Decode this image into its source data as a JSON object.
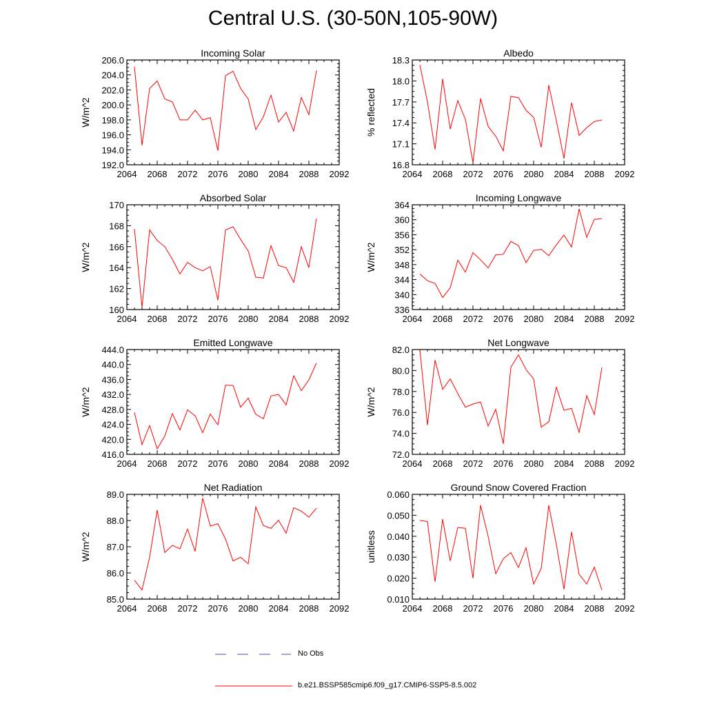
{
  "title": "Central U.S. (30-50N,105-90W)",
  "colors": {
    "model": "#ff0000",
    "obs": "#4a4ab8",
    "axes": "#000000"
  },
  "legend": {
    "obs_label": "No Obs",
    "model_label": "b.e21.BSSP585cmip6.f09_g17.CMIP6-SSP5-8.5.002"
  },
  "chart_data": [
    {
      "type": "line",
      "title": "Incoming Solar",
      "xlabel": "",
      "ylabel": "W/m^2",
      "xlim": [
        2064,
        2092
      ],
      "ylim": [
        192,
        206
      ],
      "xticks": [
        "2064",
        "2068",
        "2072",
        "2076",
        "2080",
        "2084",
        "2088",
        "2092"
      ],
      "yticks": [
        "192.0",
        "194.0",
        "196.0",
        "198.0",
        "200.0",
        "202.0",
        "204.0",
        "206.0"
      ],
      "x": [
        2065,
        2066,
        2067,
        2068,
        2069,
        2070,
        2071,
        2072,
        2073,
        2074,
        2075,
        2076,
        2077,
        2078,
        2079,
        2080,
        2081,
        2082,
        2083,
        2084,
        2085,
        2086,
        2087,
        2088,
        2089
      ],
      "values": [
        205.1,
        194.6,
        202.2,
        203.2,
        200.8,
        200.4,
        198.0,
        198.0,
        199.3,
        198.0,
        198.3,
        193.9,
        203.9,
        204.5,
        202.2,
        200.8,
        196.7,
        198.4,
        201.3,
        197.7,
        199.0,
        196.5,
        201.0,
        198.7,
        204.6
      ]
    },
    {
      "type": "line",
      "title": "Albedo",
      "xlabel": "",
      "ylabel": "% reflected",
      "xlim": [
        2064,
        2092
      ],
      "ylim": [
        16.8,
        18.3
      ],
      "xticks": [
        "2064",
        "2068",
        "2072",
        "2076",
        "2080",
        "2084",
        "2088",
        "2092"
      ],
      "yticks": [
        "16.8",
        "17.1",
        "17.4",
        "17.7",
        "18.0",
        "18.3"
      ],
      "x": [
        2065,
        2066,
        2067,
        2068,
        2069,
        2070,
        2071,
        2072,
        2073,
        2074,
        2075,
        2076,
        2077,
        2078,
        2079,
        2080,
        2081,
        2082,
        2083,
        2084,
        2085,
        2086,
        2087,
        2088,
        2089
      ],
      "values": [
        18.23,
        17.7,
        17.02,
        18.03,
        17.31,
        17.72,
        17.45,
        16.83,
        17.75,
        17.35,
        17.21,
        17.0,
        17.78,
        17.76,
        17.58,
        17.48,
        17.05,
        17.94,
        17.43,
        16.89,
        17.69,
        17.22,
        17.33,
        17.42,
        17.44
      ]
    },
    {
      "type": "line",
      "title": "Absorbed Solar",
      "xlabel": "",
      "ylabel": "W/m^2",
      "xlim": [
        2064,
        2092
      ],
      "ylim": [
        160,
        170
      ],
      "xticks": [
        "2064",
        "2068",
        "2072",
        "2076",
        "2080",
        "2084",
        "2088",
        "2092"
      ],
      "yticks": [
        "160",
        "162",
        "164",
        "166",
        "168",
        "170"
      ],
      "x": [
        2065,
        2066,
        2067,
        2068,
        2069,
        2070,
        2071,
        2072,
        2073,
        2074,
        2075,
        2076,
        2077,
        2078,
        2079,
        2080,
        2081,
        2082,
        2083,
        2084,
        2085,
        2086,
        2087,
        2088,
        2089
      ],
      "values": [
        167.7,
        160.2,
        167.6,
        166.6,
        166.0,
        164.8,
        163.4,
        164.5,
        164.0,
        163.7,
        164.1,
        160.9,
        167.6,
        167.9,
        166.7,
        165.6,
        163.1,
        163.0,
        166.1,
        164.2,
        164.0,
        162.6,
        166.0,
        164.0,
        168.7
      ]
    },
    {
      "type": "line",
      "title": "Incoming Longwave",
      "xlabel": "",
      "ylabel": "W/m^2",
      "xlim": [
        2064,
        2092
      ],
      "ylim": [
        336,
        364
      ],
      "xticks": [
        "2064",
        "2068",
        "2072",
        "2076",
        "2080",
        "2084",
        "2088",
        "2092"
      ],
      "yticks": [
        "336",
        "340",
        "344",
        "348",
        "352",
        "356",
        "360",
        "364"
      ],
      "x": [
        2065,
        2066,
        2067,
        2068,
        2069,
        2070,
        2071,
        2072,
        2073,
        2074,
        2075,
        2076,
        2077,
        2078,
        2079,
        2080,
        2081,
        2082,
        2083,
        2084,
        2085,
        2086,
        2087,
        2088,
        2089
      ],
      "values": [
        345.5,
        343.7,
        343.0,
        339.2,
        341.8,
        349.2,
        346.0,
        351.2,
        349.3,
        347.1,
        350.6,
        350.8,
        354.2,
        353.1,
        348.5,
        351.8,
        352.1,
        350.4,
        353.3,
        355.9,
        352.7,
        362.9,
        355.3,
        360.1,
        360.3
      ]
    },
    {
      "type": "line",
      "title": "Emitted Longwave",
      "xlabel": "",
      "ylabel": "W/m^2",
      "xlim": [
        2064,
        2092
      ],
      "ylim": [
        416,
        444
      ],
      "xticks": [
        "2064",
        "2068",
        "2072",
        "2076",
        "2080",
        "2084",
        "2088",
        "2092"
      ],
      "yticks": [
        "416.0",
        "420.0",
        "424.0",
        "428.0",
        "432.0",
        "436.0",
        "440.0",
        "444.0"
      ],
      "x": [
        2065,
        2066,
        2067,
        2068,
        2069,
        2070,
        2071,
        2072,
        2073,
        2074,
        2075,
        2076,
        2077,
        2078,
        2079,
        2080,
        2081,
        2082,
        2083,
        2084,
        2085,
        2086,
        2087,
        2088,
        2089
      ],
      "values": [
        427.2,
        418.6,
        423.7,
        417.5,
        420.9,
        426.9,
        422.5,
        427.9,
        426.3,
        421.8,
        426.8,
        423.9,
        434.5,
        434.4,
        428.6,
        431.0,
        426.7,
        425.5,
        431.6,
        432.0,
        429.2,
        437.0,
        433.0,
        435.9,
        440.4
      ]
    },
    {
      "type": "line",
      "title": "Net Longwave",
      "xlabel": "",
      "ylabel": "W/m^2",
      "xlim": [
        2064,
        2092
      ],
      "ylim": [
        72,
        82
      ],
      "xticks": [
        "2064",
        "2068",
        "2072",
        "2076",
        "2080",
        "2084",
        "2088",
        "2092"
      ],
      "yticks": [
        "72.0",
        "74.0",
        "76.0",
        "78.0",
        "80.0",
        "82.0"
      ],
      "x": [
        2065,
        2066,
        2067,
        2068,
        2069,
        2070,
        2071,
        2072,
        2073,
        2074,
        2075,
        2076,
        2077,
        2078,
        2079,
        2080,
        2081,
        2082,
        2083,
        2084,
        2085,
        2086,
        2087,
        2088,
        2089
      ],
      "values": [
        82.0,
        74.8,
        81.0,
        78.2,
        79.2,
        77.8,
        76.5,
        76.8,
        77.0,
        74.7,
        76.3,
        73.0,
        80.3,
        81.5,
        80.1,
        79.2,
        74.6,
        75.1,
        78.4,
        76.2,
        76.4,
        74.1,
        77.6,
        75.8,
        80.3
      ]
    },
    {
      "type": "line",
      "title": "Net Radiation",
      "xlabel": "",
      "ylabel": "W/m^2",
      "xlim": [
        2064,
        2092
      ],
      "ylim": [
        85,
        89
      ],
      "xticks": [
        "2064",
        "2068",
        "2072",
        "2076",
        "2080",
        "2084",
        "2088",
        "2092"
      ],
      "yticks": [
        "85.0",
        "86.0",
        "87.0",
        "88.0",
        "89.0"
      ],
      "x": [
        2065,
        2066,
        2067,
        2068,
        2069,
        2070,
        2071,
        2072,
        2073,
        2074,
        2075,
        2076,
        2077,
        2078,
        2079,
        2080,
        2081,
        2082,
        2083,
        2084,
        2085,
        2086,
        2087,
        2088,
        2089
      ],
      "values": [
        85.72,
        85.35,
        86.6,
        88.4,
        86.78,
        87.05,
        86.92,
        87.67,
        86.82,
        88.86,
        87.79,
        87.88,
        87.3,
        86.46,
        86.6,
        86.35,
        88.52,
        87.81,
        87.7,
        88.01,
        87.52,
        88.49,
        88.36,
        88.13,
        88.47
      ]
    },
    {
      "type": "line",
      "title": "Ground Snow Covered Fraction",
      "xlabel": "",
      "ylabel": "unitless",
      "xlim": [
        2064,
        2092
      ],
      "ylim": [
        0.01,
        0.06
      ],
      "xticks": [
        "2064",
        "2068",
        "2072",
        "2076",
        "2080",
        "2084",
        "2088",
        "2092"
      ],
      "yticks": [
        "0.010",
        "0.020",
        "0.030",
        "0.040",
        "0.050",
        "0.060"
      ],
      "x": [
        2065,
        2066,
        2067,
        2068,
        2069,
        2070,
        2071,
        2072,
        2073,
        2074,
        2075,
        2076,
        2077,
        2078,
        2079,
        2080,
        2081,
        2082,
        2083,
        2084,
        2085,
        2086,
        2087,
        2088,
        2089
      ],
      "values": [
        0.0476,
        0.047,
        0.0183,
        0.0482,
        0.0282,
        0.0442,
        0.0438,
        0.02,
        0.0548,
        0.04,
        0.0221,
        0.0293,
        0.0322,
        0.0251,
        0.0345,
        0.0172,
        0.0247,
        0.0548,
        0.036,
        0.0147,
        0.0421,
        0.0218,
        0.0172,
        0.0253,
        0.0143
      ]
    }
  ]
}
